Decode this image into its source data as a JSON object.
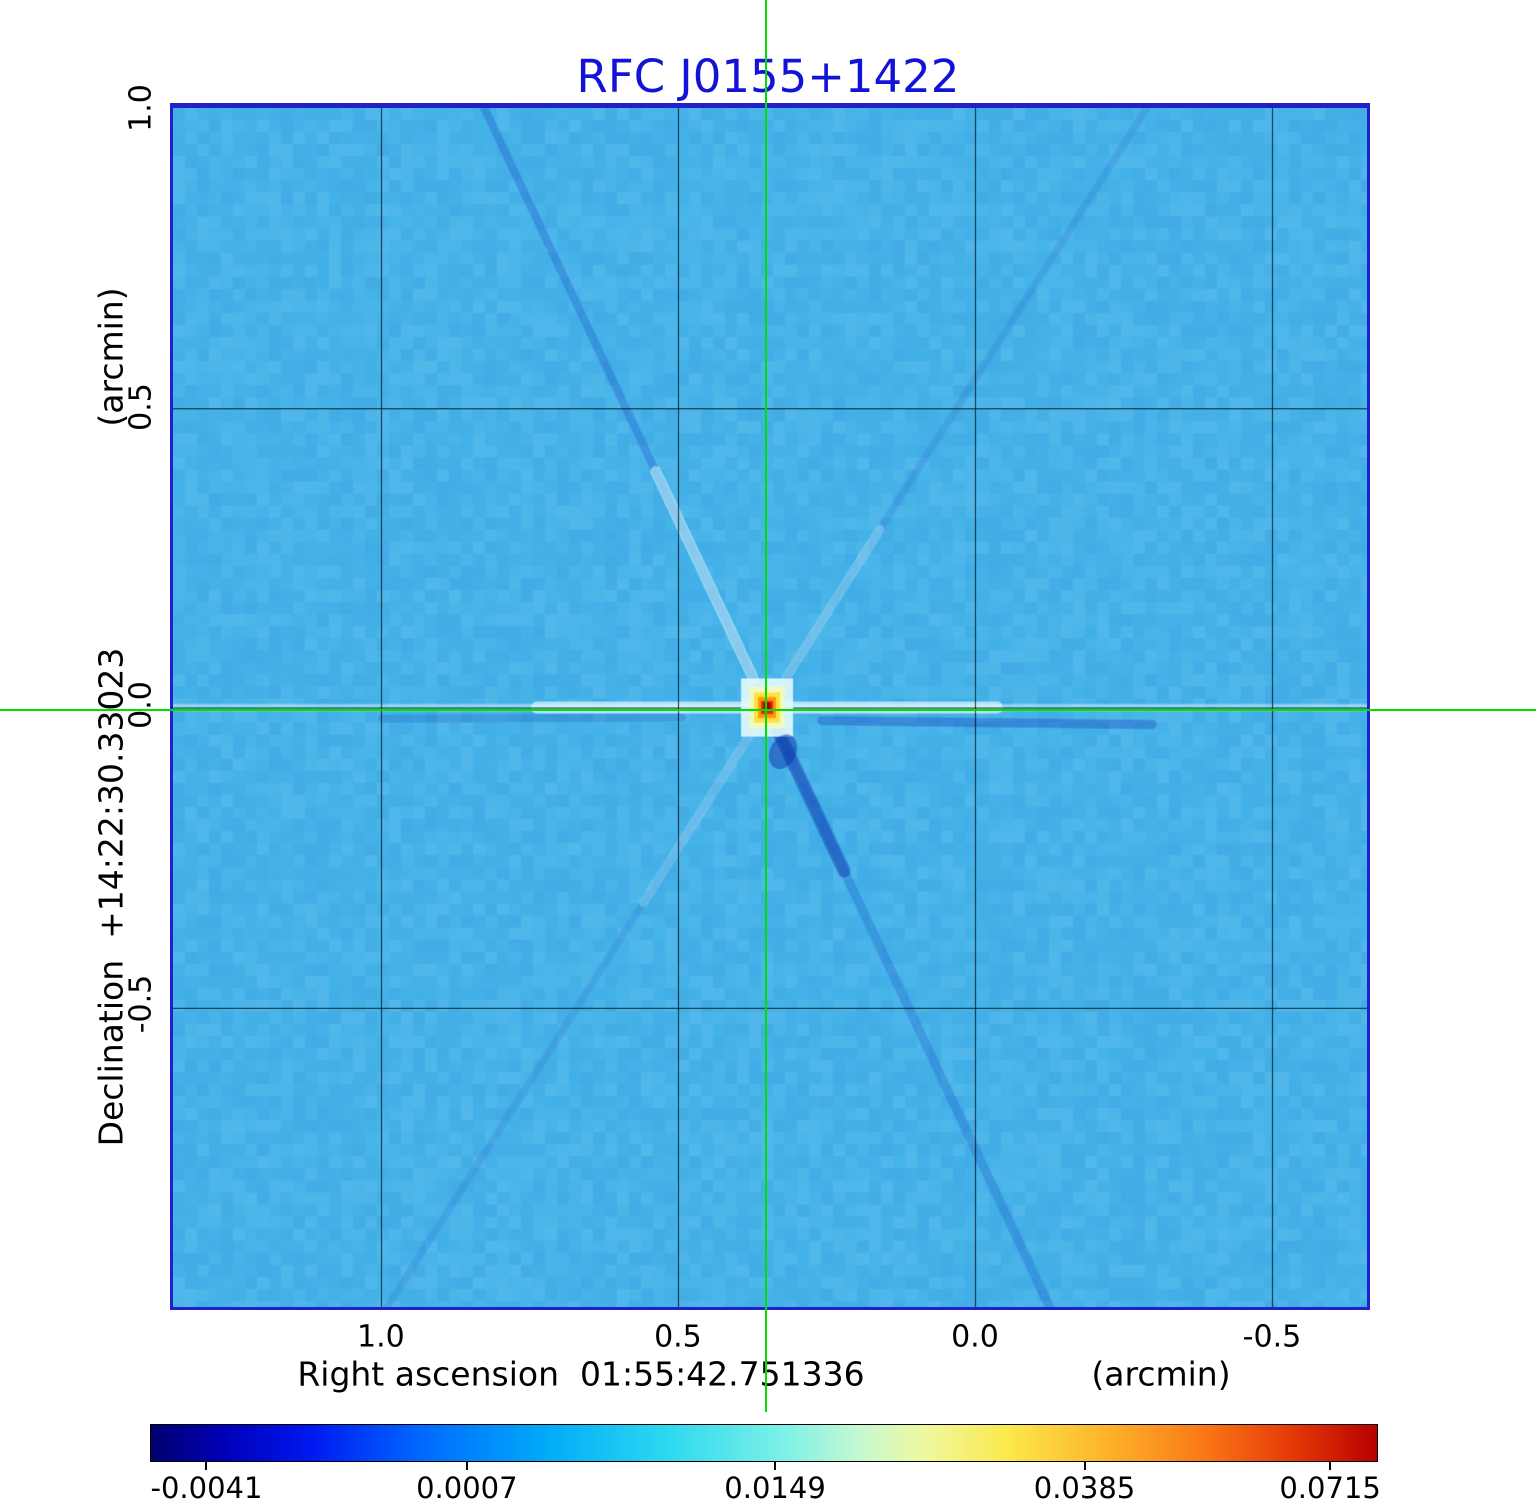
{
  "title": "RFC J0155+1422",
  "x_axis": {
    "label": "Right ascension  01:55:42.751336",
    "unit_label": "(arcmin)",
    "ticks": [
      "1.0",
      "0.5",
      "0.0",
      "-0.5"
    ]
  },
  "y_axis": {
    "label": "Declination  +14:22:30.33023",
    "unit_label": "(arcmin)",
    "ticks": [
      "1.0",
      "0.5",
      "0.0",
      "-0.5"
    ]
  },
  "colors": {
    "title": "#1313d8",
    "frame": "#2121cc",
    "crosshair": "#00e000"
  },
  "chart_data": {
    "type": "heatmap",
    "title": "RFC J0155+1422",
    "xlabel": "Right ascension 01:55:42.751336 (arcmin)",
    "ylabel": "Declination +14:22:30.33023 (arcmin)",
    "x_ticks": [
      1.0,
      0.5,
      0.0,
      -0.5
    ],
    "y_ticks": [
      1.0,
      0.5,
      0.0,
      -0.5
    ],
    "x_range": [
      1.35,
      -0.66
    ],
    "y_range": [
      1.0,
      -1.0
    ],
    "grid": true,
    "background_color": "#45b3e9",
    "background_value": 0.0007,
    "source": {
      "x": 0.35,
      "y": 0.0,
      "peak_value": 0.0715
    },
    "features": {
      "diffraction_spikes": true,
      "horizontal_ray": true,
      "crosshair_marks_source": true
    },
    "colorbar": {
      "ticks": [
        "-0.0041",
        "0.0007",
        "0.0149",
        "0.0385",
        "0.0715"
      ],
      "tick_values": [
        -0.0041,
        0.0007,
        0.0149,
        0.0385,
        0.0715
      ],
      "tick_positions": [
        0.046,
        0.258,
        0.509,
        0.761,
        0.961
      ],
      "gradient": [
        {
          "p": 0.0,
          "c": "#00006e"
        },
        {
          "p": 0.06,
          "c": "#0000b8"
        },
        {
          "p": 0.13,
          "c": "#0018f0"
        },
        {
          "p": 0.22,
          "c": "#0068ff"
        },
        {
          "p": 0.32,
          "c": "#00aaf8"
        },
        {
          "p": 0.42,
          "c": "#2cd8f0"
        },
        {
          "p": 0.52,
          "c": "#80f2e6"
        },
        {
          "p": 0.58,
          "c": "#c8f8d0"
        },
        {
          "p": 0.63,
          "c": "#eef9a0"
        },
        {
          "p": 0.7,
          "c": "#fbe84a"
        },
        {
          "p": 0.78,
          "c": "#fdb32a"
        },
        {
          "p": 0.86,
          "c": "#f97716"
        },
        {
          "p": 0.93,
          "c": "#e63a08"
        },
        {
          "p": 1.0,
          "c": "#b80000"
        }
      ]
    }
  }
}
